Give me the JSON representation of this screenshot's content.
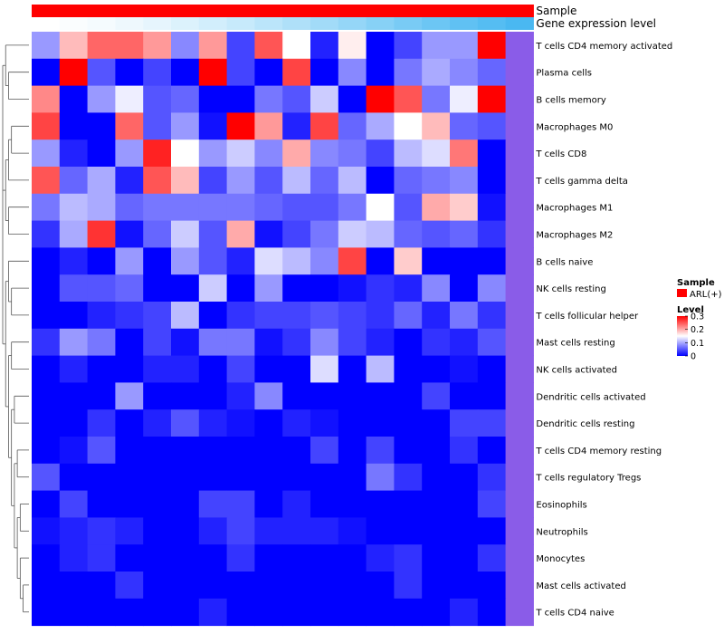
{
  "chart_data": {
    "type": "heatmap",
    "annotation_tracks": [
      {
        "label": "Sample",
        "colors": [
          "#ff0000",
          "#ff0000",
          "#ff0000",
          "#ff0000",
          "#ff0000",
          "#ff0000",
          "#ff0000",
          "#ff0000",
          "#ff0000",
          "#ff0000",
          "#ff0000",
          "#ff0000",
          "#ff0000",
          "#ff0000",
          "#ff0000",
          "#ff0000",
          "#ff0000",
          "#ff0000"
        ]
      },
      {
        "label": "Gene expression level",
        "colors": [
          "#ffffff",
          "#fafdfe",
          "#f5fbfe",
          "#eef8fd",
          "#e6f5fd",
          "#dcf2fc",
          "#d2eefc",
          "#c7eafb",
          "#bbe5fa",
          "#afe0f9",
          "#a2dbf8",
          "#95d6f7",
          "#87d1f6",
          "#79cbf5",
          "#6cc6f4",
          "#60c1f3",
          "#55bdf2",
          "#4ab8f1"
        ]
      }
    ],
    "rows": [
      "T cells CD4 memory activated",
      "Plasma cells",
      "B cells memory",
      "Macrophages M0",
      "T cells CD8",
      "T cells gamma delta",
      "Macrophages M1",
      "Macrophages M2",
      "B cells naive",
      "NK cells resting",
      "T cells follicular helper",
      "Mast cells resting",
      "NK cells activated",
      "Dendritic cells activated",
      "Dendritic cells resting",
      "T cells CD4 memory resting",
      "T cells regulatory  Tregs",
      "Eosinophils",
      "Neutrophils",
      "Monocytes",
      "Mast cells activated",
      "T cells CD4 naive"
    ],
    "values": [
      [
        0.09,
        0.19,
        0.24,
        0.24,
        0.21,
        0.08,
        0.21,
        0.04,
        0.25,
        0.15,
        0.02,
        0.16,
        0.0,
        0.04,
        0.09,
        0.09,
        0.3,
        null
      ],
      [
        0.0,
        0.3,
        0.05,
        0.0,
        0.04,
        0.0,
        0.3,
        0.04,
        0.0,
        0.26,
        0.0,
        0.08,
        0.0,
        0.07,
        0.1,
        0.08,
        0.06,
        null
      ],
      [
        0.22,
        0.0,
        0.09,
        0.14,
        0.05,
        0.06,
        0.0,
        0.0,
        0.07,
        0.05,
        0.12,
        0.0,
        0.3,
        0.25,
        0.07,
        0.14,
        0.3,
        null
      ],
      [
        0.26,
        0.0,
        0.0,
        0.24,
        0.05,
        0.09,
        0.01,
        0.3,
        0.21,
        0.02,
        0.26,
        0.06,
        0.1,
        0.15,
        0.19,
        0.06,
        0.05,
        null
      ],
      [
        0.09,
        0.02,
        0.0,
        0.09,
        0.28,
        0.15,
        0.09,
        0.12,
        0.08,
        0.2,
        0.08,
        0.07,
        0.04,
        0.11,
        0.13,
        0.23,
        0.0,
        null
      ],
      [
        0.25,
        0.06,
        0.1,
        0.02,
        0.25,
        0.19,
        0.04,
        0.09,
        0.05,
        0.11,
        0.06,
        0.11,
        0.0,
        0.06,
        0.07,
        0.08,
        0.0,
        null
      ],
      [
        0.07,
        0.11,
        0.1,
        0.06,
        0.07,
        0.07,
        0.07,
        0.07,
        0.06,
        0.05,
        0.05,
        0.07,
        0.15,
        0.05,
        0.2,
        0.18,
        0.01,
        null
      ],
      [
        0.03,
        0.1,
        0.27,
        0.01,
        0.06,
        0.12,
        0.05,
        0.2,
        0.01,
        0.04,
        0.07,
        0.12,
        0.11,
        0.06,
        0.05,
        0.06,
        0.03,
        null
      ],
      [
        0.0,
        0.02,
        0.0,
        0.09,
        0.0,
        0.09,
        0.05,
        0.02,
        0.13,
        0.11,
        0.08,
        0.26,
        0.0,
        0.18,
        0.0,
        0.0,
        0.0,
        null
      ],
      [
        0.0,
        0.05,
        0.05,
        0.06,
        0.0,
        0.0,
        0.12,
        0.0,
        0.09,
        0.0,
        0.0,
        0.01,
        0.03,
        0.02,
        0.08,
        0.0,
        0.08,
        null
      ],
      [
        0.0,
        0.0,
        0.02,
        0.03,
        0.04,
        0.11,
        0.0,
        0.03,
        0.04,
        0.04,
        0.05,
        0.04,
        0.03,
        0.06,
        0.02,
        0.07,
        0.03,
        null
      ],
      [
        0.03,
        0.09,
        0.07,
        0.0,
        0.04,
        0.01,
        0.07,
        0.07,
        0.01,
        0.03,
        0.08,
        0.04,
        0.02,
        0.0,
        0.03,
        0.02,
        0.05,
        null
      ],
      [
        0.0,
        0.02,
        0.0,
        0.0,
        0.02,
        0.02,
        0.0,
        0.04,
        0.0,
        0.0,
        0.13,
        0.0,
        0.11,
        0.0,
        0.0,
        0.01,
        0.0,
        null
      ],
      [
        0.0,
        0.0,
        0.0,
        0.09,
        0.0,
        0.0,
        0.0,
        0.02,
        0.08,
        0.0,
        0.0,
        0.0,
        0.0,
        0.0,
        0.04,
        0.0,
        0.0,
        null
      ],
      [
        0.0,
        0.0,
        0.03,
        0.0,
        0.02,
        0.05,
        0.02,
        0.01,
        0.0,
        0.02,
        0.01,
        0.0,
        0.0,
        0.0,
        0.0,
        0.04,
        0.04,
        null
      ],
      [
        0.0,
        0.01,
        0.05,
        0.0,
        0.0,
        0.0,
        0.0,
        0.0,
        0.0,
        0.0,
        0.04,
        0.0,
        0.04,
        0.0,
        0.0,
        0.03,
        0.0,
        null
      ],
      [
        0.05,
        0.0,
        0.0,
        0.0,
        0.0,
        0.0,
        0.0,
        0.0,
        0.0,
        0.0,
        0.0,
        0.0,
        0.07,
        0.03,
        0.0,
        0.0,
        0.03,
        null
      ],
      [
        0.0,
        0.04,
        0.0,
        0.0,
        0.0,
        0.0,
        0.04,
        0.04,
        0.0,
        0.02,
        0.0,
        0.0,
        0.0,
        0.0,
        0.0,
        0.0,
        0.04,
        null
      ],
      [
        0.01,
        0.02,
        0.03,
        0.02,
        0.0,
        0.0,
        0.02,
        0.04,
        0.02,
        0.02,
        0.02,
        0.01,
        0.0,
        0.0,
        0.0,
        0.0,
        0.0,
        null
      ],
      [
        0.0,
        0.02,
        0.03,
        0.0,
        0.0,
        0.0,
        0.0,
        0.03,
        0.0,
        0.0,
        0.0,
        0.0,
        0.02,
        0.03,
        0.0,
        0.0,
        0.03,
        null
      ],
      [
        0.0,
        0.0,
        0.0,
        0.03,
        0.0,
        0.0,
        0.0,
        0.0,
        0.0,
        0.0,
        0.0,
        0.0,
        0.0,
        0.03,
        0.0,
        0.0,
        0.0,
        null
      ],
      [
        0.0,
        0.0,
        0.0,
        0.0,
        0.0,
        0.0,
        0.02,
        0.0,
        0.0,
        0.0,
        0.0,
        0.0,
        0.0,
        0.0,
        0.0,
        0.02,
        0.0,
        null
      ]
    ],
    "color_scale": {
      "min": 0,
      "max": 0.3,
      "low": "#0000ff",
      "mid": "#ffffff",
      "high": "#ff0000",
      "midpoint": 0.15
    },
    "legend": {
      "sample_title": "Sample",
      "sample_entry": "ARL(+)",
      "sample_color": "#ff0000",
      "level_title": "Level",
      "level_ticks": [
        "0.3",
        "0.2",
        "0.1",
        "0"
      ],
      "level_tick_values": [
        0.3,
        0.2,
        0.1,
        0
      ]
    },
    "dendrogram": "rows"
  }
}
